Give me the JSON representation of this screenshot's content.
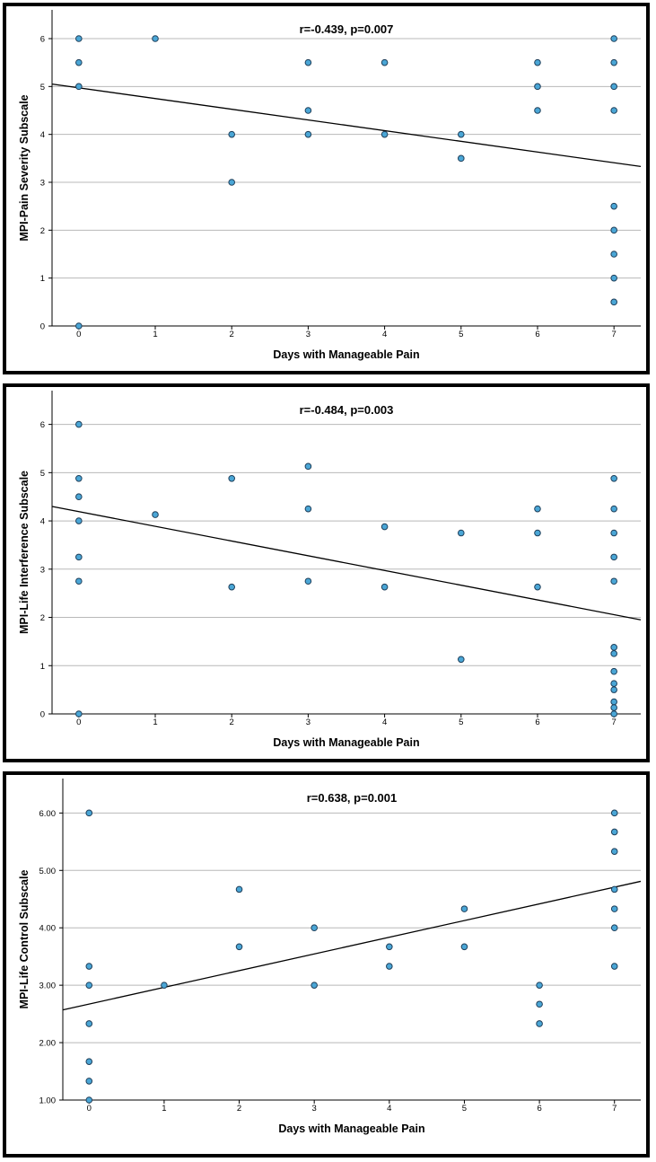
{
  "colors": {
    "point_fill": "#4aa6d6",
    "point_stroke": "#1f3f5a",
    "grid": "#b8b8b8",
    "line": "#000000"
  },
  "chart_data": [
    {
      "type": "scatter",
      "title": "r=-0.439, p=0.007",
      "xlabel": "Days with Manageable Pain",
      "ylabel": "MPI-Pain Severity Subscale",
      "xlim": [
        -0.35,
        7.35
      ],
      "ylim": [
        0,
        6.6
      ],
      "xticks": [
        0,
        1,
        2,
        3,
        4,
        5,
        6,
        7
      ],
      "xtick_labels": [
        "0",
        "1",
        "2",
        "3",
        "4",
        "5",
        "6",
        "7"
      ],
      "yticks": [
        0,
        1,
        2,
        3,
        4,
        5,
        6
      ],
      "ytick_labels": [
        "0",
        "1",
        "2",
        "3",
        "4",
        "5",
        "6"
      ],
      "grid": true,
      "points": [
        [
          0,
          6
        ],
        [
          0,
          5.5
        ],
        [
          0,
          5
        ],
        [
          0,
          0
        ],
        [
          1,
          6
        ],
        [
          2,
          4
        ],
        [
          2,
          3
        ],
        [
          3,
          5.5
        ],
        [
          3,
          4.5
        ],
        [
          3,
          4
        ],
        [
          4,
          5.5
        ],
        [
          4,
          4
        ],
        [
          5,
          4
        ],
        [
          5,
          3.5
        ],
        [
          6,
          5.5
        ],
        [
          6,
          5
        ],
        [
          6,
          4.5
        ],
        [
          7,
          6
        ],
        [
          7,
          5.5
        ],
        [
          7,
          5
        ],
        [
          7,
          4.5
        ],
        [
          7,
          2.5
        ],
        [
          7,
          2
        ],
        [
          7,
          1.5
        ],
        [
          7,
          1
        ],
        [
          7,
          0.5
        ]
      ],
      "fit_line": {
        "x": [
          -0.35,
          7.35
        ],
        "y": [
          5.05,
          3.33
        ]
      }
    },
    {
      "type": "scatter",
      "title": "r=-0.484, p=0.003",
      "xlabel": "Days with Manageable Pain",
      "ylabel": "MPI-Life Interference Subscale",
      "xlim": [
        -0.35,
        7.35
      ],
      "ylim": [
        0,
        6.7
      ],
      "xticks": [
        0,
        1,
        2,
        3,
        4,
        5,
        6,
        7
      ],
      "xtick_labels": [
        "0",
        "1",
        "2",
        "3",
        "4",
        "5",
        "6",
        "7"
      ],
      "yticks": [
        0,
        1,
        2,
        3,
        4,
        5,
        6
      ],
      "ytick_labels": [
        "0",
        "1",
        "2",
        "3",
        "4",
        "5",
        "6"
      ],
      "grid": true,
      "points": [
        [
          0,
          6
        ],
        [
          0,
          4.88
        ],
        [
          0,
          4.5
        ],
        [
          0,
          4
        ],
        [
          0,
          3.25
        ],
        [
          0,
          2.75
        ],
        [
          0,
          0
        ],
        [
          1,
          4.13
        ],
        [
          2,
          4.88
        ],
        [
          2,
          2.63
        ],
        [
          3,
          5.13
        ],
        [
          3,
          4.25
        ],
        [
          3,
          2.75
        ],
        [
          4,
          3.88
        ],
        [
          4,
          2.63
        ],
        [
          5,
          3.75
        ],
        [
          5,
          1.13
        ],
        [
          6,
          4.25
        ],
        [
          6,
          3.75
        ],
        [
          6,
          2.63
        ],
        [
          7,
          4.88
        ],
        [
          7,
          4.25
        ],
        [
          7,
          3.75
        ],
        [
          7,
          3.25
        ],
        [
          7,
          2.75
        ],
        [
          7,
          1.38
        ],
        [
          7,
          1.25
        ],
        [
          7,
          0.88
        ],
        [
          7,
          0.63
        ],
        [
          7,
          0.5
        ],
        [
          7,
          0.25
        ],
        [
          7,
          0.13
        ],
        [
          7,
          0
        ]
      ],
      "fit_line": {
        "x": [
          -0.35,
          7.35
        ],
        "y": [
          4.3,
          1.95
        ]
      }
    },
    {
      "type": "scatter",
      "title": "r=0.638, p=0.001",
      "xlabel": "Days with Manageable Pain",
      "ylabel": "MPI-Life Control Subscale",
      "xlim": [
        -0.35,
        7.35
      ],
      "ylim": [
        1,
        6.6
      ],
      "xticks": [
        0,
        1,
        2,
        3,
        4,
        5,
        6,
        7
      ],
      "xtick_labels": [
        "0",
        "1",
        "2",
        "3",
        "4",
        "5",
        "6",
        "7"
      ],
      "yticks": [
        1,
        2,
        3,
        4,
        5,
        6
      ],
      "ytick_labels": [
        "1.00",
        "2.00",
        "3.00",
        "4.00",
        "5.00",
        "6.00"
      ],
      "grid": true,
      "points": [
        [
          0,
          6
        ],
        [
          0,
          3.33
        ],
        [
          0,
          3
        ],
        [
          0,
          2.33
        ],
        [
          0,
          1.67
        ],
        [
          0,
          1.33
        ],
        [
          0,
          1
        ],
        [
          1,
          3
        ],
        [
          2,
          4.67
        ],
        [
          2,
          3.67
        ],
        [
          3,
          4
        ],
        [
          3,
          3
        ],
        [
          4,
          3.67
        ],
        [
          4,
          3.33
        ],
        [
          5,
          4.33
        ],
        [
          5,
          3.67
        ],
        [
          6,
          3
        ],
        [
          6,
          2.67
        ],
        [
          6,
          2.33
        ],
        [
          7,
          6
        ],
        [
          7,
          5.67
        ],
        [
          7,
          5.33
        ],
        [
          7,
          4.67
        ],
        [
          7,
          4.33
        ],
        [
          7,
          4
        ],
        [
          7,
          3.33
        ]
      ],
      "fit_line": {
        "x": [
          -0.35,
          7.35
        ],
        "y": [
          2.57,
          4.81
        ]
      }
    }
  ]
}
